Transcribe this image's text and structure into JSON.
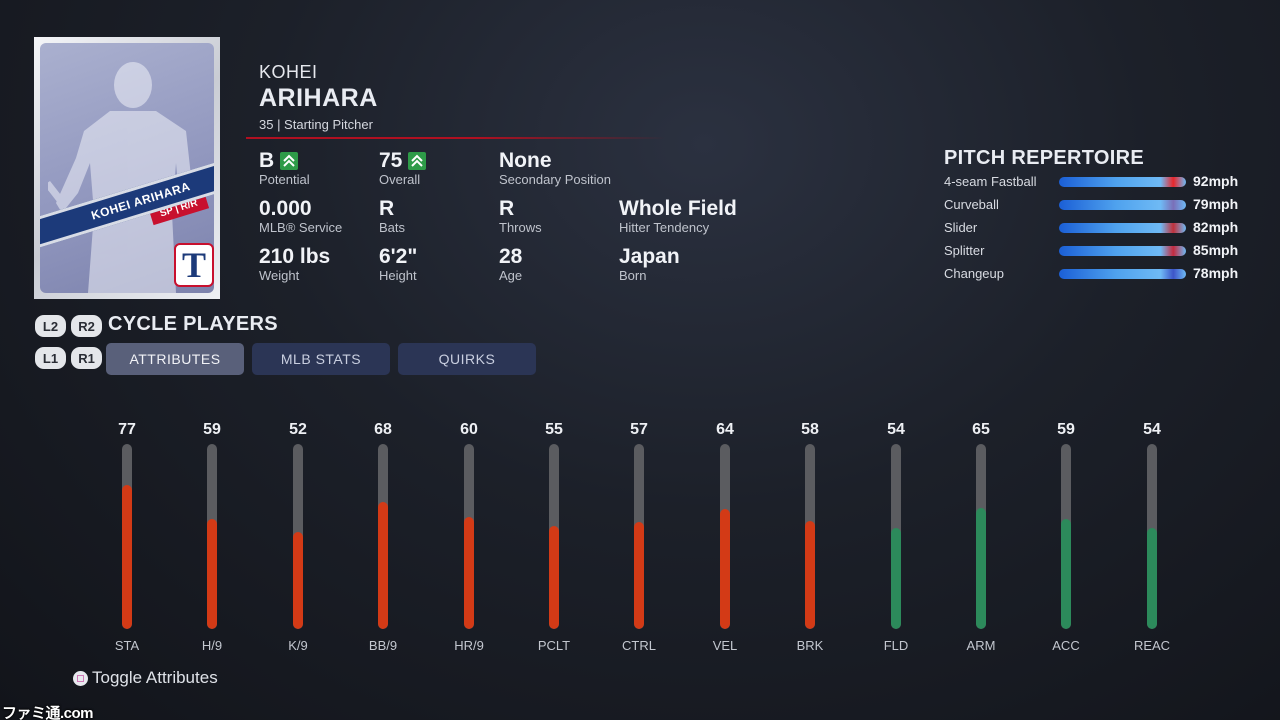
{
  "player": {
    "first_name": "KOHEI",
    "last_name": "ARIHARA",
    "subline": "35 | Starting Pitcher",
    "card_name": "KOHEI ARIHARA",
    "card_position": "SP | R/R",
    "team_logo_letter": "T"
  },
  "stats": {
    "potential": {
      "value": "B",
      "label": "Potential"
    },
    "overall": {
      "value": "75",
      "label": "Overall"
    },
    "secondary_position": {
      "value": "None",
      "label": "Secondary Position"
    },
    "mlb_service": {
      "value": "0.000",
      "label": "MLB® Service"
    },
    "bats": {
      "value": "R",
      "label": "Bats"
    },
    "throws": {
      "value": "R",
      "label": "Throws"
    },
    "hitter_tendency": {
      "value": "Whole Field",
      "label": "Hitter Tendency"
    },
    "weight": {
      "value": "210 lbs",
      "label": "Weight"
    },
    "height": {
      "value": "6'2\"",
      "label": "Height"
    },
    "age": {
      "value": "28",
      "label": "Age"
    },
    "born": {
      "value": "Japan",
      "label": "Born"
    }
  },
  "repertoire": {
    "title": "PITCH REPERTOIRE",
    "pitches": [
      {
        "name": "4-seam Fastball",
        "speed": "92mph",
        "fill": 1.0,
        "accent": "#e8262a"
      },
      {
        "name": "Curveball",
        "speed": "79mph",
        "fill": 1.0,
        "accent": "#7a6fb8"
      },
      {
        "name": "Slider",
        "speed": "82mph",
        "fill": 1.0,
        "accent": "#c0303a"
      },
      {
        "name": "Splitter",
        "speed": "85mph",
        "fill": 1.0,
        "accent": "#c42a3e"
      },
      {
        "name": "Changeup",
        "speed": "78mph",
        "fill": 1.0,
        "accent": "#3d55c8"
      }
    ]
  },
  "navigation": {
    "cycle_label": "CYCLE PLAYERS",
    "keys": {
      "l2": "L2",
      "r2": "R2",
      "l1": "L1",
      "r1": "R1"
    },
    "tabs": [
      {
        "label": "ATTRIBUTES",
        "active": true
      },
      {
        "label": "MLB STATS",
        "active": false
      },
      {
        "label": "QUIRKS",
        "active": false
      }
    ]
  },
  "attributes": {
    "max": 99,
    "colors": {
      "red": "#d33a16",
      "green": "#2c8a5b"
    },
    "items": [
      {
        "name": "STA",
        "value": 77,
        "color": "red"
      },
      {
        "name": "H/9",
        "value": 59,
        "color": "red"
      },
      {
        "name": "K/9",
        "value": 52,
        "color": "red"
      },
      {
        "name": "BB/9",
        "value": 68,
        "color": "red"
      },
      {
        "name": "HR/9",
        "value": 60,
        "color": "red"
      },
      {
        "name": "PCLT",
        "value": 55,
        "color": "red"
      },
      {
        "name": "CTRL",
        "value": 57,
        "color": "red"
      },
      {
        "name": "VEL",
        "value": 64,
        "color": "red"
      },
      {
        "name": "BRK",
        "value": 58,
        "color": "red"
      },
      {
        "name": "FLD",
        "value": 54,
        "color": "green"
      },
      {
        "name": "ARM",
        "value": 65,
        "color": "green"
      },
      {
        "name": "ACC",
        "value": 59,
        "color": "green"
      },
      {
        "name": "REAC",
        "value": 54,
        "color": "green"
      }
    ]
  },
  "footer": {
    "toggle_label": "Toggle Attributes",
    "watermark": "ファミ通.com"
  }
}
